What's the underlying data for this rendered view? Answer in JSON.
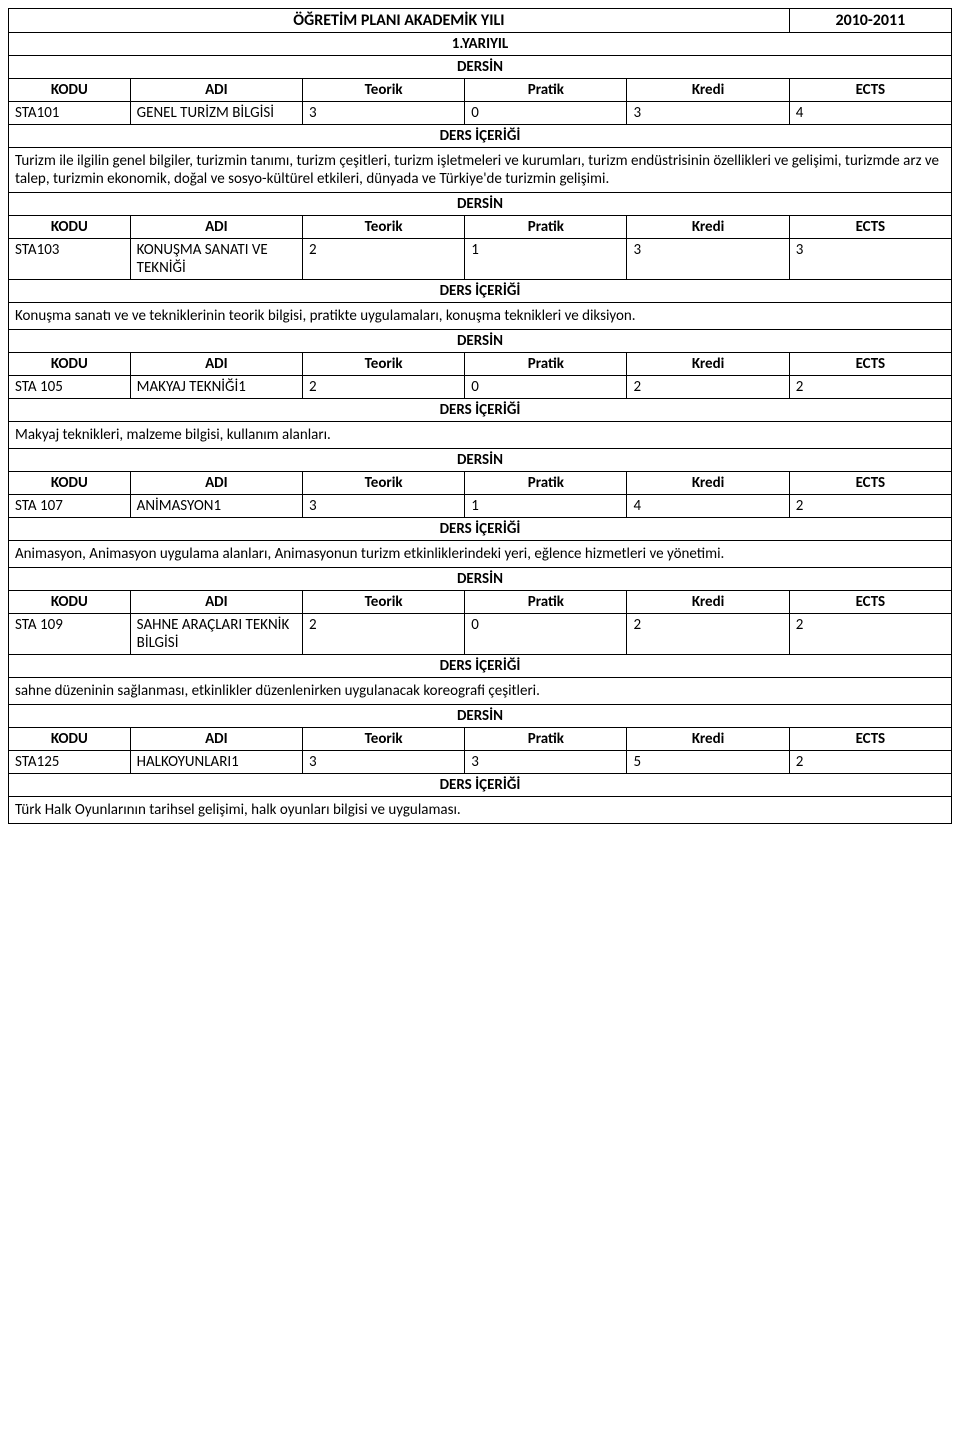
{
  "title": "ÖĞRETİM PLANI AKADEMİK YILI",
  "year": "2010-2011",
  "semester": "1.YARIYIL",
  "labels": {
    "dersin": "DERSİN",
    "kodu": "KODU",
    "adi": "ADI",
    "teorik": "Teorik",
    "pratik": "Pratik",
    "kredi": "Kredi",
    "ects": "ECTS",
    "ders_icerigi": "DERS İÇERİĞİ"
  },
  "courses": [
    {
      "code": "STA101",
      "name": "GENEL TURİZM BİLGİSİ",
      "teorik": "3",
      "pratik": "0",
      "kredi": "3",
      "ects": "4",
      "content": "Turizm ile ilgilin genel bilgiler, turizmin tanımı, turizm çeşitleri, turizm işletmeleri ve kurumları, turizm endüstrisinin özellikleri ve gelişimi, turizmde arz ve talep, turizmin ekonomik, doğal ve sosyo-kültürel etkileri, dünyada ve Türkiye'de turizmin gelişimi."
    },
    {
      "code": "STA103",
      "name": "KONUŞMA SANATI VE TEKNİĞİ",
      "teorik": "2",
      "pratik": "1",
      "kredi": "3",
      "ects": "3",
      "content": "Konuşma sanatı ve ve tekniklerinin teorik bilgisi, pratikte uygulamaları, konuşma teknikleri ve diksiyon."
    },
    {
      "code": "STA 105",
      "name": "MAKYAJ TEKNİĞİ1",
      "teorik": "2",
      "pratik": "0",
      "kredi": "2",
      "ects": "2",
      "content": "Makyaj teknikleri, malzeme bilgisi, kullanım alanları."
    },
    {
      "code": "STA 107",
      "name": "ANİMASYON1",
      "teorik": "3",
      "pratik": "1",
      "kredi": "4",
      "ects": "2",
      "content": "Animasyon, Animasyon uygulama alanları, Animasyonun turizm etkinliklerindeki yeri, eğlence hizmetleri ve yönetimi."
    },
    {
      "code": "STA 109",
      "name": "SAHNE ARAÇLARI TEKNİK BİLGİSİ",
      "teorik": "2",
      "pratik": "0",
      "kredi": "2",
      "ects": "2",
      "content": "sahne düzeninin sağlanması, etkinlikler düzenlenirken uygulanacak koreografi çeşitleri."
    },
    {
      "code": "STA125",
      "name": "HALKOYUNLARI1",
      "teorik": "3",
      "pratik": "3",
      "kredi": "5",
      "ects": "2",
      "content": "Türk Halk Oyunlarının tarihsel gelişimi, halk oyunları bilgisi ve uygulaması."
    }
  ]
}
